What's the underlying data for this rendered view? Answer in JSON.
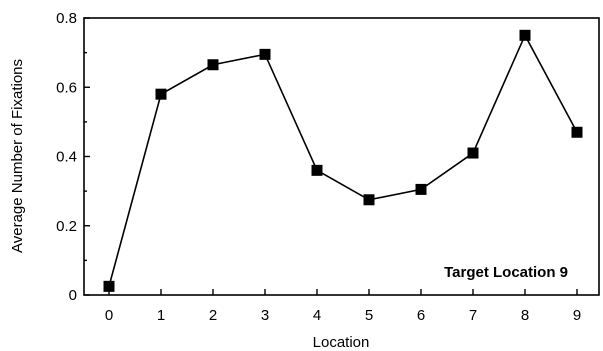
{
  "chart_data": {
    "type": "line",
    "title": "",
    "xlabel": "Location",
    "ylabel": "Average Number of Fixations",
    "categories": [
      "0",
      "1",
      "2",
      "3",
      "4",
      "5",
      "6",
      "7",
      "8",
      "9"
    ],
    "x": [
      0,
      1,
      2,
      3,
      4,
      5,
      6,
      7,
      8,
      9
    ],
    "series": [
      {
        "values": [
          0.025,
          0.58,
          0.665,
          0.695,
          0.36,
          0.275,
          0.305,
          0.41,
          0.75,
          0.47
        ]
      }
    ],
    "ylim": [
      0,
      0.8
    ],
    "yticks": [
      "0",
      "0.2",
      "0.4",
      "0.6",
      "0.8"
    ],
    "ytick_values": [
      0,
      0.2,
      0.4,
      0.6,
      0.8
    ],
    "grid": false,
    "legend": "none",
    "annotation": "Target Location 9",
    "marker": "square",
    "line_color": "#000000",
    "marker_color": "#000000"
  }
}
